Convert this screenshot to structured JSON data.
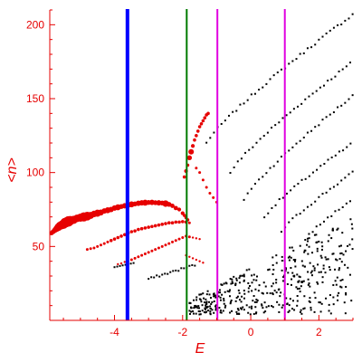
{
  "chart_data": {
    "type": "scatter",
    "title": "",
    "xlabel": "E",
    "ylabel": "<n>",
    "xlim": [
      -5.9,
      3.0
    ],
    "ylim": [
      0,
      210
    ],
    "xticks": [
      -4,
      -2,
      0,
      2
    ],
    "xtick_labels": [
      "-4",
      "-2",
      "0",
      "2"
    ],
    "yticks": [
      50,
      100,
      150,
      200
    ],
    "ytick_labels": [
      "50",
      "100",
      "150",
      "200"
    ],
    "grid": false,
    "legend": "none",
    "colors": {
      "axis": "#e60000",
      "highlight_points": "#e60000",
      "regular_points": "#000000",
      "line_blue": "#0000ff",
      "line_green": "#007a00",
      "line_magenta": "#e000e0"
    },
    "vertical_lines": [
      {
        "x": -3.62,
        "color": "#0000ff",
        "width": "thick"
      },
      {
        "x": -1.88,
        "color": "#007a00",
        "width": "thin"
      },
      {
        "x": -0.98,
        "color": "#e000e0",
        "width": "thin"
      },
      {
        "x": 1.0,
        "color": "#e000e0",
        "width": "thin"
      }
    ],
    "series": [
      {
        "description": "main highlighted branch (red, larger markers)",
        "style": "red",
        "points": [
          [
            -5.85,
            59,
            0.4
          ],
          [
            -5.8,
            60,
            0.45
          ],
          [
            -5.75,
            61,
            0.5
          ],
          [
            -5.7,
            62,
            0.6
          ],
          [
            -5.65,
            63,
            0.7
          ],
          [
            -5.6,
            64,
            0.75
          ],
          [
            -5.55,
            64.5,
            0.8
          ],
          [
            -5.5,
            65,
            0.85
          ],
          [
            -5.45,
            66,
            0.9
          ],
          [
            -5.4,
            66.5,
            0.9
          ],
          [
            -5.35,
            67,
            0.95
          ],
          [
            -5.3,
            67.5,
            0.85
          ],
          [
            -5.2,
            68,
            0.75
          ],
          [
            -5.1,
            69,
            0.7
          ],
          [
            -5.0,
            69.5,
            0.75
          ],
          [
            -4.9,
            70,
            0.85
          ],
          [
            -4.8,
            70.5,
            0.8
          ],
          [
            -4.7,
            71,
            0.65
          ],
          [
            -4.6,
            72,
            0.6
          ],
          [
            -4.5,
            72.5,
            0.65
          ],
          [
            -4.4,
            73,
            0.55
          ],
          [
            -4.3,
            74,
            0.5
          ],
          [
            -4.2,
            74.5,
            0.55
          ],
          [
            -4.1,
            75,
            0.5
          ],
          [
            -4.0,
            76,
            0.5
          ],
          [
            -3.9,
            76.5,
            0.55
          ],
          [
            -3.8,
            77,
            0.45
          ],
          [
            -3.7,
            77.5,
            0.5
          ],
          [
            -3.6,
            78,
            0.5
          ],
          [
            -3.5,
            78.5,
            0.55
          ],
          [
            -3.4,
            78.8,
            0.45
          ],
          [
            -3.3,
            79.2,
            0.5
          ],
          [
            -3.2,
            79.5,
            0.5
          ],
          [
            -3.1,
            79.6,
            0.55
          ],
          [
            -3.0,
            79.8,
            0.45
          ],
          [
            -2.9,
            79.8,
            0.5
          ],
          [
            -2.8,
            79.6,
            0.45
          ],
          [
            -2.7,
            79.5,
            0.5
          ],
          [
            -2.6,
            79.4,
            0.45
          ],
          [
            -2.5,
            79.0,
            0.6
          ],
          [
            -2.4,
            78.5,
            0.45
          ],
          [
            -2.3,
            77.5,
            0.4
          ],
          [
            -2.2,
            76.0,
            0.4
          ],
          [
            -2.1,
            75.0,
            0.35
          ],
          [
            -2.0,
            72.5,
            0.35
          ],
          [
            -1.95,
            71.0,
            0.3
          ],
          [
            -1.9,
            69.5,
            0.3
          ],
          [
            -1.85,
            68.0,
            0.3
          ]
        ]
      },
      {
        "description": "second highlighted branch (red)",
        "style": "red",
        "points": [
          [
            -4.8,
            48,
            0.25
          ],
          [
            -4.7,
            48.5,
            0.25
          ],
          [
            -4.6,
            49,
            0.25
          ],
          [
            -4.5,
            50,
            0.25
          ],
          [
            -4.4,
            51,
            0.25
          ],
          [
            -4.3,
            52,
            0.25
          ],
          [
            -4.2,
            53,
            0.25
          ],
          [
            -4.1,
            54,
            0.3
          ],
          [
            -4.0,
            55,
            0.3
          ],
          [
            -3.9,
            56,
            0.3
          ],
          [
            -3.8,
            57,
            0.3
          ],
          [
            -3.7,
            58,
            0.3
          ],
          [
            -3.6,
            59,
            0.3
          ],
          [
            -3.5,
            60,
            0.3
          ],
          [
            -3.4,
            60.5,
            0.3
          ],
          [
            -3.3,
            61.5,
            0.3
          ],
          [
            -3.2,
            62,
            0.3
          ],
          [
            -3.1,
            62.5,
            0.3
          ],
          [
            -3.0,
            63,
            0.3
          ],
          [
            -2.9,
            63.5,
            0.3
          ],
          [
            -2.8,
            64,
            0.3
          ],
          [
            -2.7,
            64.5,
            0.3
          ],
          [
            -2.6,
            65,
            0.3
          ],
          [
            -2.5,
            65.5,
            0.3
          ],
          [
            -2.4,
            66,
            0.3
          ],
          [
            -2.3,
            66,
            0.3
          ],
          [
            -2.2,
            66.5,
            0.3
          ],
          [
            -2.1,
            66.5,
            0.3
          ],
          [
            -2.0,
            66.8,
            0.3
          ],
          [
            -1.9,
            66.5,
            0.3
          ],
          [
            -1.8,
            66,
            0.25
          ]
        ]
      },
      {
        "description": "third branch (red transitioning to black)",
        "style": "red",
        "points": [
          [
            -3.9,
            38,
            0.2
          ],
          [
            -3.8,
            38.5,
            0.2
          ],
          [
            -3.7,
            39.5,
            0.2
          ],
          [
            -3.6,
            40,
            0.2
          ],
          [
            -3.5,
            41,
            0.25
          ],
          [
            -3.4,
            42,
            0.25
          ],
          [
            -3.3,
            43,
            0.25
          ],
          [
            -3.2,
            44,
            0.25
          ],
          [
            -3.1,
            45,
            0.25
          ],
          [
            -3.0,
            46,
            0.25
          ],
          [
            -2.9,
            47,
            0.25
          ],
          [
            -2.8,
            48,
            0.25
          ],
          [
            -2.7,
            49,
            0.25
          ],
          [
            -2.6,
            50,
            0.25
          ],
          [
            -2.5,
            51,
            0.25
          ],
          [
            -2.4,
            52,
            0.25
          ],
          [
            -2.3,
            53,
            0.25
          ],
          [
            -2.2,
            54,
            0.25
          ],
          [
            -2.1,
            55,
            0.25
          ],
          [
            -2.0,
            56,
            0.25
          ],
          [
            -1.9,
            57,
            0.25
          ],
          [
            -1.8,
            56.5,
            0.25
          ],
          [
            -1.7,
            56,
            0.2
          ],
          [
            -1.6,
            55.5,
            0.2
          ],
          [
            -1.5,
            55,
            0.2
          ]
        ]
      },
      {
        "description": "red steep upper cluster",
        "style": "red",
        "points": [
          [
            -1.95,
            97,
            0.3
          ],
          [
            -1.9,
            101,
            0.35
          ],
          [
            -1.85,
            105,
            0.3
          ],
          [
            -1.8,
            110,
            0.45
          ],
          [
            -1.75,
            114,
            0.5
          ],
          [
            -1.7,
            118,
            0.35
          ],
          [
            -1.65,
            122,
            0.3
          ],
          [
            -1.6,
            125,
            0.3
          ],
          [
            -1.55,
            128,
            0.3
          ],
          [
            -1.5,
            131,
            0.3
          ],
          [
            -1.45,
            133,
            0.3
          ],
          [
            -1.4,
            135,
            0.3
          ],
          [
            -1.35,
            137,
            0.3
          ],
          [
            -1.3,
            139,
            0.3
          ],
          [
            -1.25,
            140,
            0.3
          ],
          [
            -1.6,
            103,
            0.25
          ],
          [
            -1.5,
            100,
            0.25
          ],
          [
            -1.4,
            95,
            0.25
          ],
          [
            -1.3,
            90,
            0.25
          ],
          [
            -1.2,
            86,
            0.25
          ],
          [
            -1.1,
            83,
            0.25
          ],
          [
            -1.0,
            80,
            0.25
          ],
          [
            -1.9,
            44,
            0.2
          ],
          [
            -1.8,
            43,
            0.2
          ],
          [
            -1.7,
            42,
            0.2
          ],
          [
            -1.6,
            41,
            0.2
          ],
          [
            -1.5,
            40,
            0.2
          ],
          [
            -1.4,
            39,
            0.2
          ]
        ]
      }
    ]
  }
}
